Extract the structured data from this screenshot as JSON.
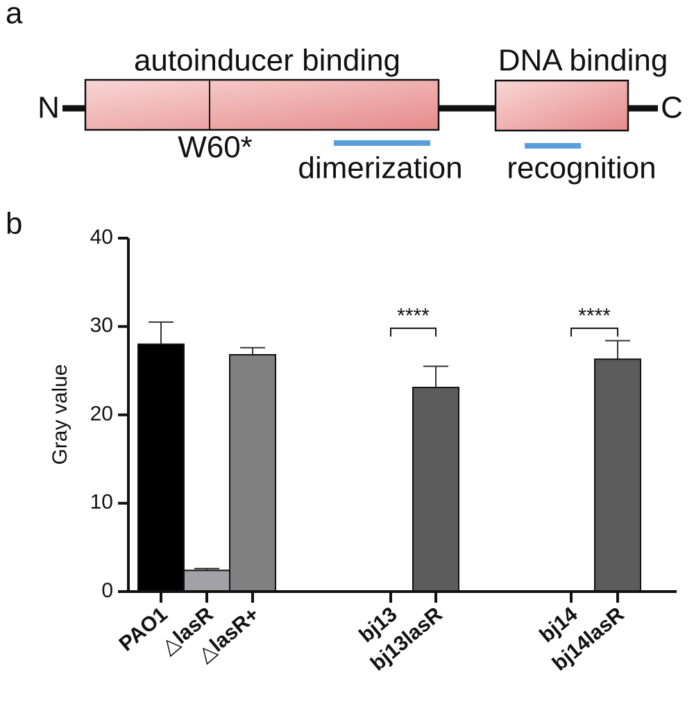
{
  "panel_labels": [
    "a",
    "b"
  ],
  "diagram": {
    "n_terminus": "N",
    "c_terminus": "C",
    "domains": [
      "autoinducer binding",
      "DNA binding"
    ],
    "mutation": "W60*",
    "regions": [
      "dimerization",
      "recognition"
    ]
  },
  "chart_data": {
    "type": "bar",
    "categories": [
      "PAO1",
      "△lasR",
      "△lasR+",
      "bj13",
      "bj13lasR",
      "bj14",
      "bj14lasR"
    ],
    "values": [
      28,
      2.4,
      26.8,
      0,
      23.1,
      0,
      26.3
    ],
    "errors": [
      2.5,
      0.2,
      0.8,
      0,
      2.4,
      0,
      2.1
    ],
    "colors": [
      "#000000",
      "#a2a2a6",
      "#808080",
      "#5c5c5c",
      "#5c5c5c",
      "#5c5c5c",
      "#5c5c5c"
    ],
    "ylabel": "Gray value",
    "ylim": [
      0,
      40
    ],
    "yticks": [
      0,
      10,
      20,
      30,
      40
    ],
    "annotations": [
      {
        "text": "****",
        "from": 3,
        "to": 4,
        "y": 29.8
      },
      {
        "text": "****",
        "from": 5,
        "to": 6,
        "y": 29.8
      }
    ]
  }
}
